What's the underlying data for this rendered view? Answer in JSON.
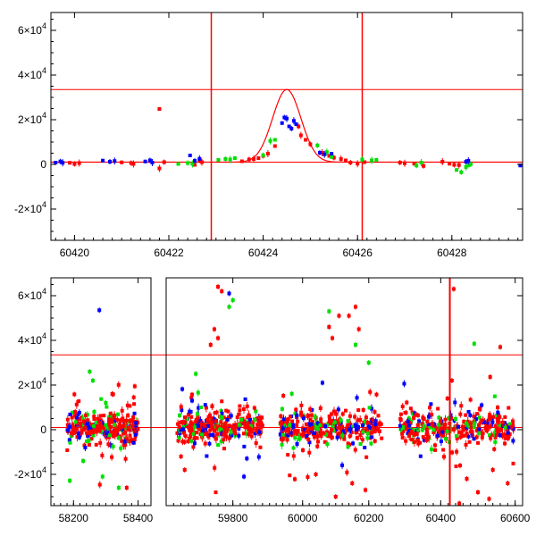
{
  "colors": {
    "red": "#ff0000",
    "green": "#00e000",
    "blue": "#0000ff",
    "model": "#ff0000",
    "guide": "#ff0000"
  },
  "chart_data": [
    {
      "type": "scatter",
      "title": "",
      "xlabel": "",
      "ylabel": "",
      "xlim": [
        60419.5,
        60429.5
      ],
      "ylim": [
        -34000,
        68000
      ],
      "x_ticks": [
        {
          "value": 60420,
          "label": "60420"
        },
        {
          "value": 60422,
          "label": "60422"
        },
        {
          "value": 60424,
          "label": "60424"
        },
        {
          "value": 60426,
          "label": "60426"
        },
        {
          "value": 60428,
          "label": "60428"
        }
      ],
      "y_ticks": [
        {
          "value": -20000,
          "mant": "-2×10",
          "exp": "4"
        },
        {
          "value": 0,
          "mant": "0",
          "exp": ""
        },
        {
          "value": 20000,
          "mant": "2×10",
          "exp": "4"
        },
        {
          "value": 40000,
          "mant": "4×10",
          "exp": "4"
        },
        {
          "value": 60000,
          "mant": "6×10",
          "exp": "4"
        }
      ],
      "vertical_lines": [
        60422.9,
        60426.1
      ],
      "horizontal_lines": [
        33500,
        1000
      ],
      "model_curve": {
        "baseline": 1000,
        "peak": 33500,
        "t0": 60424.5,
        "sigma": 0.3
      },
      "series": [
        {
          "color": "red",
          "points": [
            [
              60419.9,
              700
            ],
            [
              60420.0,
              200
            ],
            [
              60420.1,
              600
            ],
            [
              60421.0,
              900
            ],
            [
              60421.2,
              600
            ],
            [
              60421.25,
              200
            ],
            [
              60421.8,
              24800
            ],
            [
              60421.9,
              1000
            ],
            [
              60421.8,
              -1800
            ],
            [
              60422.55,
              -200
            ],
            [
              60422.65,
              1800
            ],
            [
              60422.7,
              1000
            ],
            [
              60423.55,
              1400
            ],
            [
              60423.7,
              2200
            ],
            [
              60423.8,
              2400
            ],
            [
              60423.9,
              2800
            ],
            [
              60424.0,
              3800
            ],
            [
              60424.1,
              4800
            ],
            [
              60424.25,
              8200
            ],
            [
              60424.75,
              17000
            ],
            [
              60424.8,
              13000
            ],
            [
              60424.9,
              11000
            ],
            [
              60425.0,
              9000
            ],
            [
              60425.25,
              5200
            ],
            [
              60425.4,
              3800
            ],
            [
              60425.5,
              3000
            ],
            [
              60425.65,
              2400
            ],
            [
              60425.75,
              1800
            ],
            [
              60425.85,
              800
            ],
            [
              60426.0,
              300
            ],
            [
              60426.15,
              1000
            ],
            [
              60426.9,
              800
            ],
            [
              60427.0,
              500
            ],
            [
              60427.2,
              300
            ],
            [
              60427.4,
              -700
            ],
            [
              60427.8,
              1200
            ],
            [
              60427.95,
              300
            ],
            [
              60428.05,
              -200
            ],
            [
              60428.15,
              -300
            ]
          ]
        },
        {
          "color": "green",
          "points": [
            [
              60422.2,
              200
            ],
            [
              60422.4,
              600
            ],
            [
              60422.5,
              200
            ],
            [
              60423.05,
              2000
            ],
            [
              60423.2,
              2400
            ],
            [
              60423.3,
              2200
            ],
            [
              60423.4,
              2800
            ],
            [
              60424.0,
              4100
            ],
            [
              60424.15,
              10500
            ],
            [
              60424.25,
              11000
            ],
            [
              60425.15,
              8500
            ],
            [
              60425.35,
              5500
            ],
            [
              60425.45,
              3300
            ],
            [
              60426.1,
              2200
            ],
            [
              60426.3,
              1800
            ],
            [
              60426.4,
              2000
            ],
            [
              60427.25,
              -500
            ],
            [
              60427.35,
              800
            ],
            [
              60428.1,
              -2500
            ],
            [
              60428.2,
              -3500
            ],
            [
              60428.3,
              -1200
            ],
            [
              60428.35,
              -500
            ],
            [
              60428.4,
              100
            ]
          ]
        },
        {
          "color": "blue",
          "points": [
            [
              60419.6,
              800
            ],
            [
              60419.7,
              1300
            ],
            [
              60419.75,
              700
            ],
            [
              60420.6,
              1700
            ],
            [
              60420.75,
              1200
            ],
            [
              60420.85,
              1500
            ],
            [
              60421.5,
              1300
            ],
            [
              60421.6,
              1800
            ],
            [
              60421.65,
              800
            ],
            [
              60422.45,
              4000
            ],
            [
              60422.55,
              1600
            ],
            [
              60422.65,
              2500
            ],
            [
              60424.4,
              18500
            ],
            [
              60424.45,
              21000
            ],
            [
              60424.5,
              20500
            ],
            [
              60424.55,
              17000
            ],
            [
              60424.6,
              16000
            ],
            [
              60424.65,
              19500
            ],
            [
              60424.7,
              18000
            ],
            [
              60425.2,
              5200
            ],
            [
              60425.3,
              4500
            ],
            [
              60425.45,
              4800
            ],
            [
              60428.3,
              1200
            ],
            [
              60428.35,
              1600
            ],
            [
              60429.45,
              -500
            ]
          ]
        }
      ]
    },
    {
      "type": "scatter",
      "title": "",
      "xlabel": "",
      "ylabel": "",
      "ylim": [
        -34000,
        68000
      ],
      "segments": [
        {
          "xlim": [
            58130,
            58440
          ],
          "ticks": [
            {
              "value": 58200,
              "label": "58200"
            },
            {
              "value": 58400,
              "label": "58400"
            }
          ]
        },
        {
          "xlim": [
            59620,
            59890
          ],
          "ticks": [
            {
              "value": 59800,
              "label": "59800"
            }
          ]
        },
        {
          "xlim": [
            59890,
            60260
          ],
          "ticks": [
            {
              "value": 60000,
              "label": "60000"
            },
            {
              "value": 60200,
              "label": "60200"
            }
          ]
        },
        {
          "xlim": [
            60260,
            60620
          ],
          "ticks": [
            {
              "value": 60400,
              "label": "60400"
            },
            {
              "value": 60600,
              "label": "60600"
            }
          ]
        }
      ],
      "gap_after_segment": 0,
      "y_ticks": [
        {
          "value": -20000,
          "mant": "-2×10",
          "exp": "4"
        },
        {
          "value": 0,
          "mant": "0",
          "exp": ""
        },
        {
          "value": 20000,
          "mant": "2×10",
          "exp": "4"
        },
        {
          "value": 40000,
          "mant": "4×10",
          "exp": "4"
        },
        {
          "value": 60000,
          "mant": "6×10",
          "exp": "4"
        }
      ],
      "vertical_lines": [
        60424.5
      ],
      "horizontal_lines": [
        33500,
        1000
      ],
      "clusters": [
        {
          "x_range": [
            58180,
            58400
          ],
          "outliers": [
            {
              "x": 58280,
              "y": 53500,
              "c": "blue"
            },
            {
              "x": 58250,
              "y": 26000,
              "c": "green"
            },
            {
              "x": 58260,
              "y": 22000,
              "c": "green"
            },
            {
              "x": 58300,
              "y": 12000,
              "c": "green"
            },
            {
              "x": 58290,
              "y": -21000,
              "c": "green"
            },
            {
              "x": 58340,
              "y": -26000,
              "c": "green"
            },
            {
              "x": 58230,
              "y": -14000,
              "c": "green"
            },
            {
              "x": 58320,
              "y": 16000,
              "c": "red"
            }
          ]
        },
        {
          "x_range": [
            59650,
            59880
          ],
          "outliers": [
            {
              "x": 59760,
              "y": 64000,
              "c": "red"
            },
            {
              "x": 59770,
              "y": 62000,
              "c": "red"
            },
            {
              "x": 59790,
              "y": 61000,
              "c": "blue"
            },
            {
              "x": 59800,
              "y": 58000,
              "c": "green"
            },
            {
              "x": 59790,
              "y": 55000,
              "c": "green"
            },
            {
              "x": 59750,
              "y": 45000,
              "c": "red"
            },
            {
              "x": 59760,
              "y": 41000,
              "c": "red"
            },
            {
              "x": 59740,
              "y": 38000,
              "c": "red"
            },
            {
              "x": 59700,
              "y": 25000,
              "c": "green"
            },
            {
              "x": 59690,
              "y": 13000,
              "c": "blue"
            },
            {
              "x": 59670,
              "y": -18000,
              "c": "red"
            },
            {
              "x": 59830,
              "y": -21000,
              "c": "blue"
            },
            {
              "x": 59660,
              "y": -12000,
              "c": "red"
            }
          ]
        },
        {
          "x_range": [
            59930,
            60240
          ],
          "outliers": [
            {
              "x": 60080,
              "y": 53000,
              "c": "green"
            },
            {
              "x": 60110,
              "y": 51000,
              "c": "red"
            },
            {
              "x": 60140,
              "y": 51000,
              "c": "red"
            },
            {
              "x": 60160,
              "y": 55000,
              "c": "red"
            },
            {
              "x": 60170,
              "y": 45000,
              "c": "red"
            },
            {
              "x": 60160,
              "y": 38000,
              "c": "green"
            },
            {
              "x": 60090,
              "y": 41000,
              "c": "red"
            },
            {
              "x": 60080,
              "y": 46000,
              "c": "red"
            },
            {
              "x": 60200,
              "y": 30000,
              "c": "green"
            },
            {
              "x": 60060,
              "y": 21000,
              "c": "blue"
            },
            {
              "x": 60040,
              "y": -20000,
              "c": "red"
            },
            {
              "x": 60100,
              "y": -30000,
              "c": "red"
            },
            {
              "x": 60150,
              "y": -24000,
              "c": "red"
            },
            {
              "x": 60190,
              "y": -27000,
              "c": "red"
            }
          ]
        },
        {
          "x_range": [
            60290,
            60600
          ],
          "outliers": [
            {
              "x": 60435,
              "y": 63000,
              "c": "red"
            },
            {
              "x": 60490,
              "y": 38500,
              "c": "green"
            },
            {
              "x": 60560,
              "y": 37000,
              "c": "red"
            },
            {
              "x": 60510,
              "y": 11000,
              "c": "blue"
            },
            {
              "x": 60430,
              "y": 22000,
              "c": "red"
            },
            {
              "x": 60470,
              "y": -22000,
              "c": "red"
            },
            {
              "x": 60500,
              "y": -28000,
              "c": "red"
            },
            {
              "x": 60530,
              "y": -31000,
              "c": "red"
            },
            {
              "x": 60540,
              "y": -18000,
              "c": "red"
            },
            {
              "x": 60580,
              "y": -24000,
              "c": "red"
            },
            {
              "x": 60450,
              "y": -33000,
              "c": "red"
            }
          ]
        }
      ]
    }
  ]
}
